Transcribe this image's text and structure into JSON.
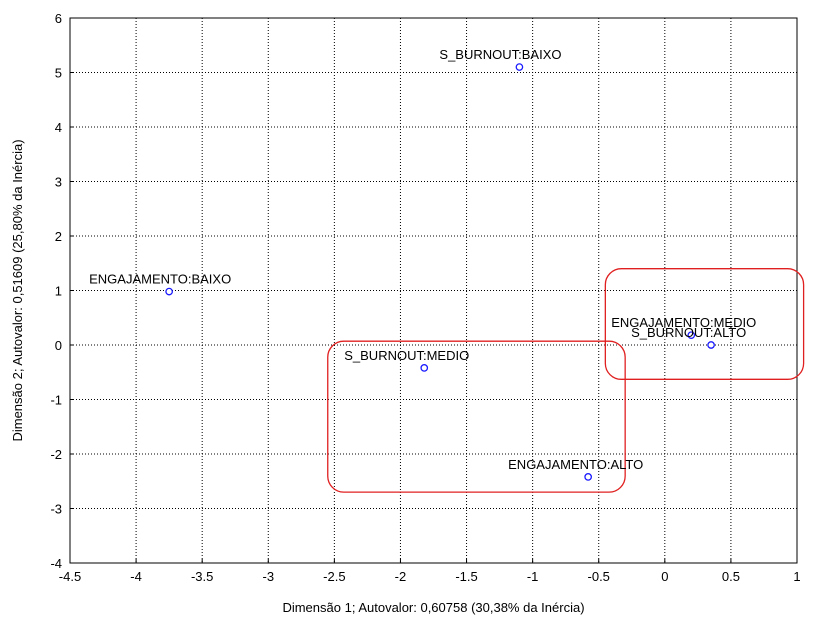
{
  "chart_data": {
    "type": "scatter",
    "title": "",
    "xlabel": "Dimensão 1; Autovalor: 0,60758 (30,38% da Inércia)",
    "ylabel": "Dimensão 2; Autovalor: 0,51609 (25,80% da Inércia)",
    "xlim": [
      -4.5,
      1
    ],
    "ylim": [
      -4,
      6
    ],
    "xticks": [
      -4.5,
      -4,
      -3.5,
      -3,
      -2.5,
      -2,
      -1.5,
      -1,
      -0.5,
      0,
      0.5,
      1
    ],
    "yticks": [
      -4,
      -3,
      -2,
      -1,
      0,
      1,
      2,
      3,
      4,
      5,
      6
    ],
    "grid": true,
    "grid_style": "dotted",
    "marker_color": "#1a1aff",
    "highlight_color": "#e02020",
    "points": [
      {
        "label": "S_BURNOUT:BAIXO",
        "x": -1.1,
        "y": 5.1
      },
      {
        "label": "ENGAJAMENTO:BAIXO",
        "x": -3.75,
        "y": 0.98
      },
      {
        "label": "S_BURNOUT:MEDIO",
        "x": -1.82,
        "y": -0.42
      },
      {
        "label": "ENGAJAMENTO:MEDIO",
        "x": 0.2,
        "y": 0.18
      },
      {
        "label": "S_BURNOUT:ALTO",
        "x": 0.35,
        "y": 0.0
      },
      {
        "label": "ENGAJAMENTO:ALTO",
        "x": -0.58,
        "y": -2.42
      }
    ],
    "highlight_regions": [
      {
        "x": [
          -2.55,
          -0.3
        ],
        "y": [
          -2.7,
          0.07
        ]
      },
      {
        "x": [
          -0.45,
          1.05
        ],
        "y": [
          1.4,
          -0.63
        ]
      }
    ]
  }
}
